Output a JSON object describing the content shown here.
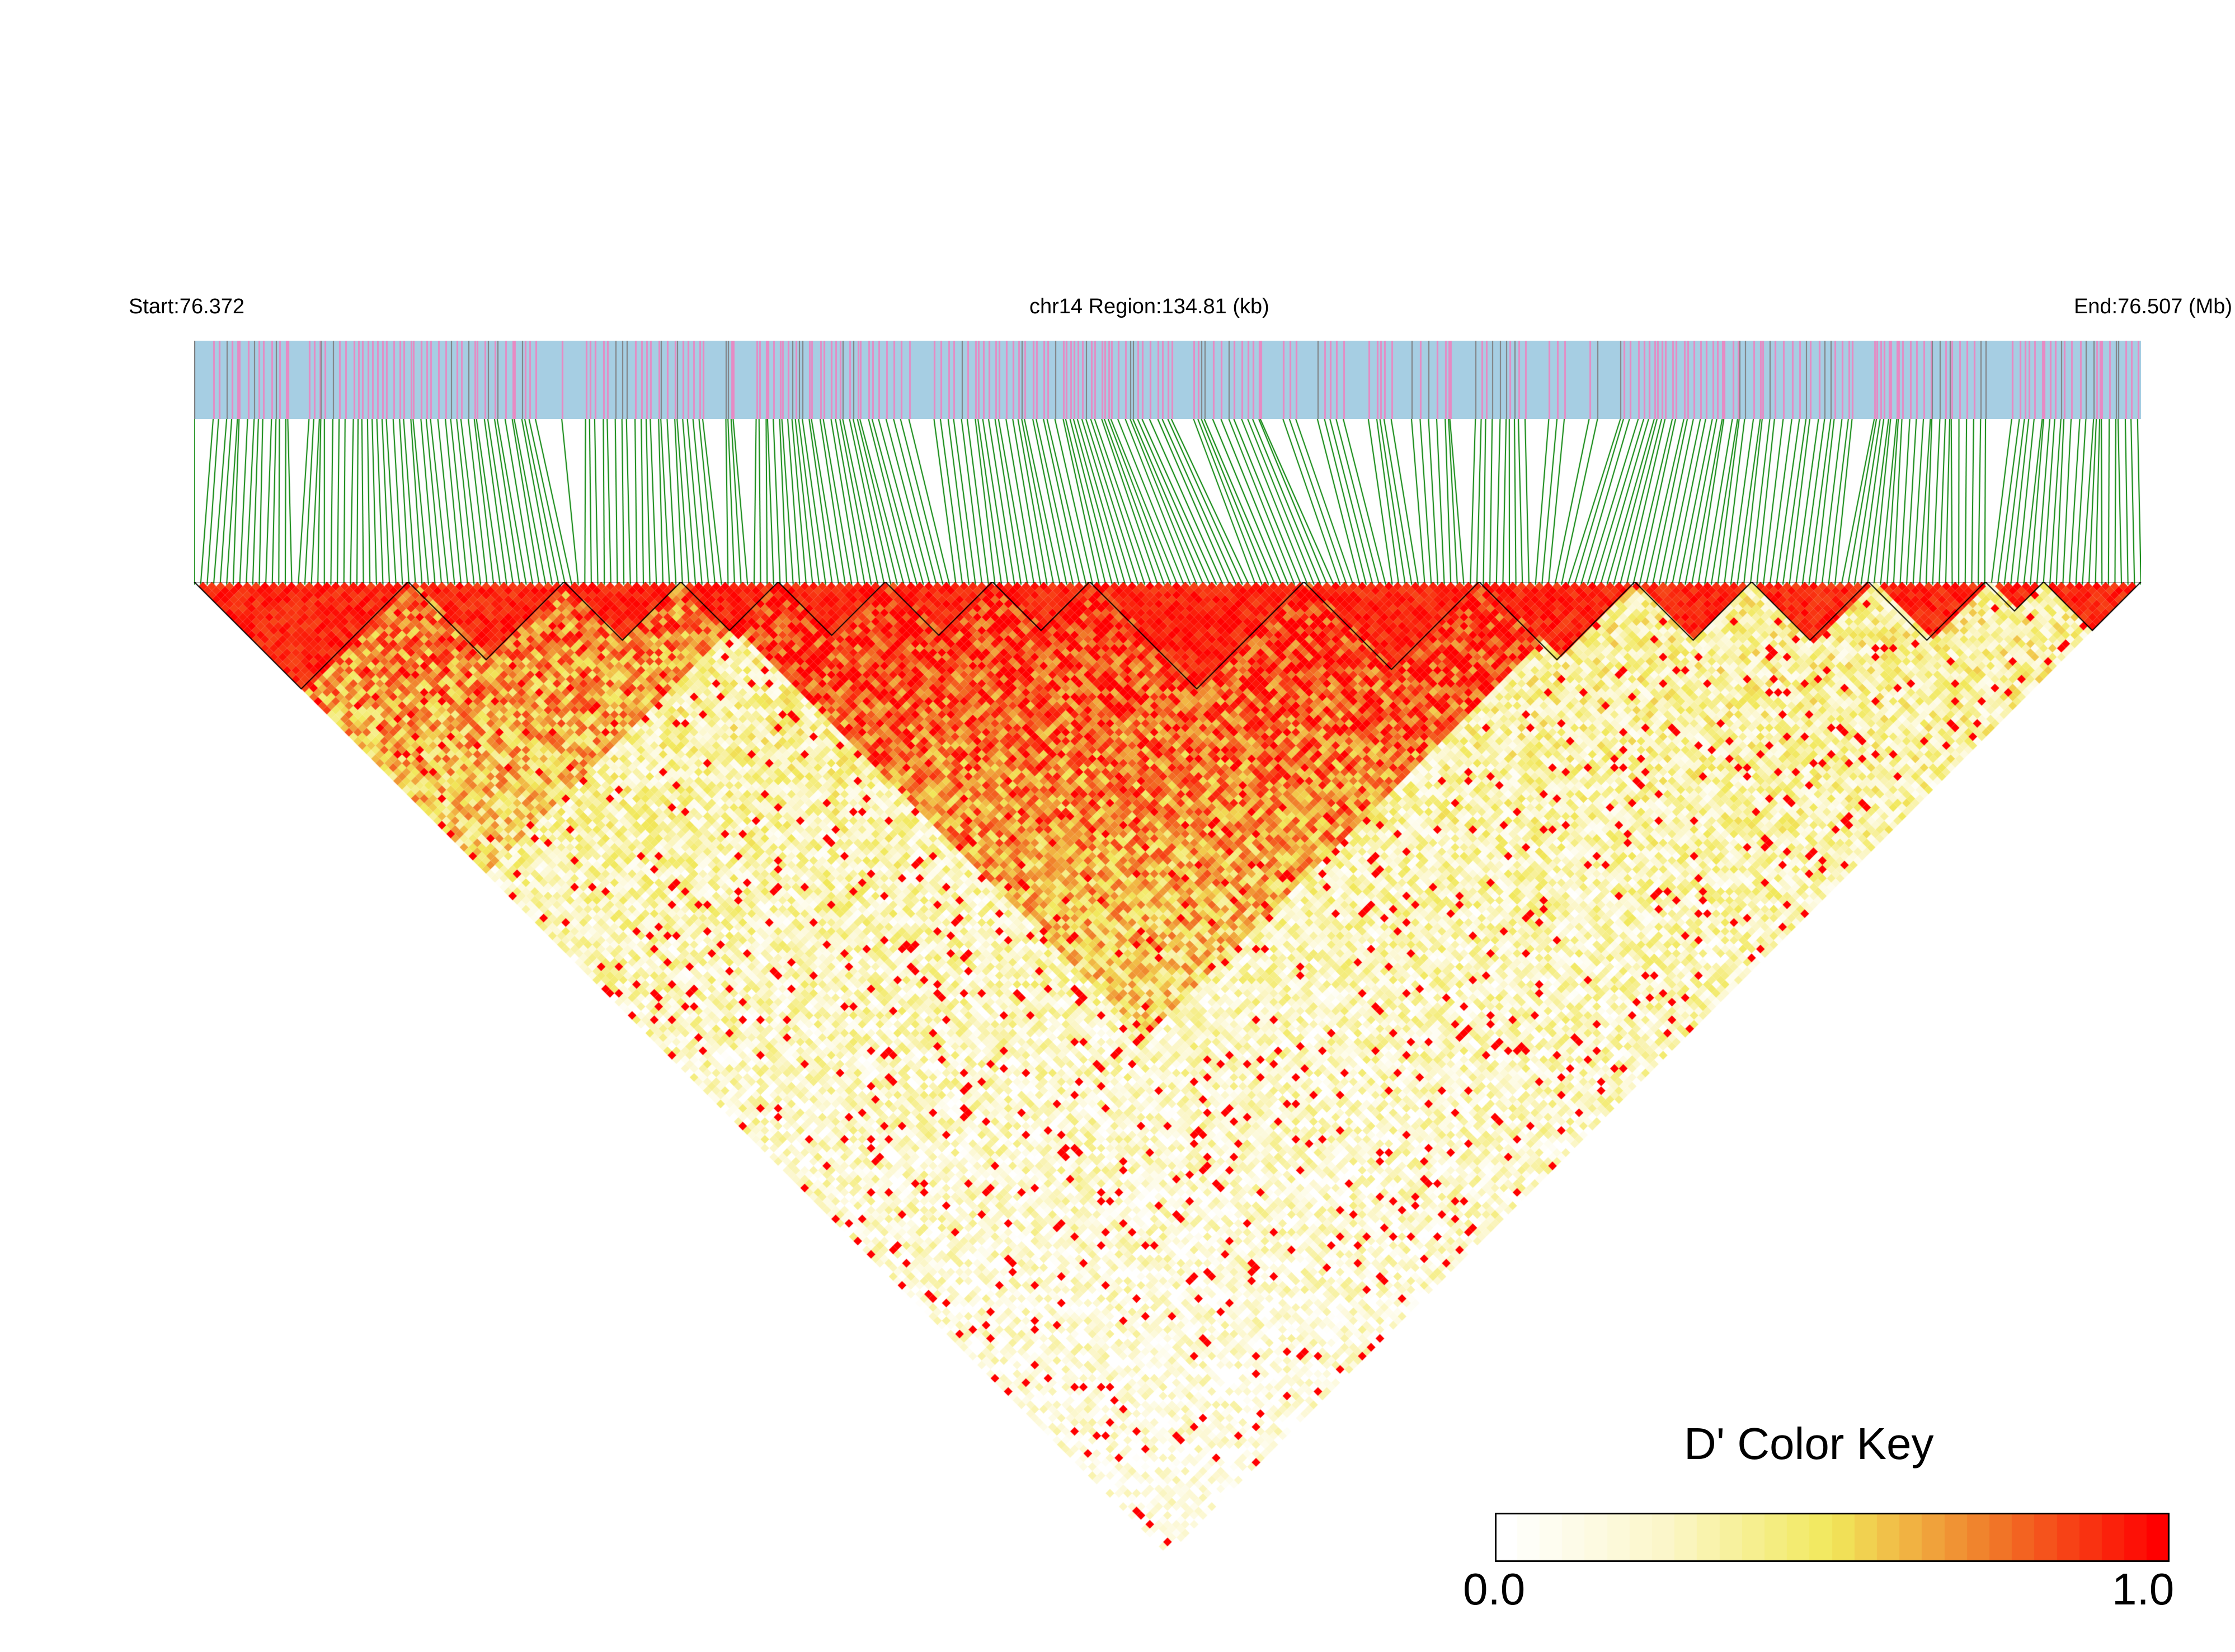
{
  "header": {
    "start_label": "Start:76.372",
    "region_label": "chr14 Region:134.81 (kb)",
    "end_label": "End:76.507 (Mb)"
  },
  "color_key": {
    "title": "D' Color Key",
    "min_label": "0.0",
    "max_label": "1.0",
    "colors": [
      "#ffffff",
      "#fbf6c8",
      "#f1e85a",
      "#ed2a0a",
      "#ff0000"
    ]
  },
  "chart_data": {
    "type": "heatmap",
    "chromosome": "chr14",
    "region_kb": 134.81,
    "start_mb": 76.372,
    "end_mb": 76.507,
    "metric": "D'",
    "value_range": [
      0.0,
      1.0
    ],
    "track_colors": {
      "background": "#a6cee3",
      "variant_a": "#e78ac3",
      "variant_b": "#7f7f7f",
      "connector": "#008000",
      "block_outline": "#000000"
    },
    "ld_blocks_bp_fraction": [
      [
        0.0,
        0.11
      ],
      [
        0.11,
        0.19
      ],
      [
        0.19,
        0.25
      ],
      [
        0.25,
        0.3
      ],
      [
        0.3,
        0.355
      ],
      [
        0.355,
        0.41
      ],
      [
        0.41,
        0.46
      ],
      [
        0.46,
        0.57
      ],
      [
        0.57,
        0.66
      ],
      [
        0.66,
        0.74
      ],
      [
        0.74,
        0.8
      ],
      [
        0.8,
        0.86
      ],
      [
        0.86,
        0.92
      ],
      [
        0.92,
        0.95
      ],
      [
        0.95,
        1.0
      ]
    ]
  }
}
